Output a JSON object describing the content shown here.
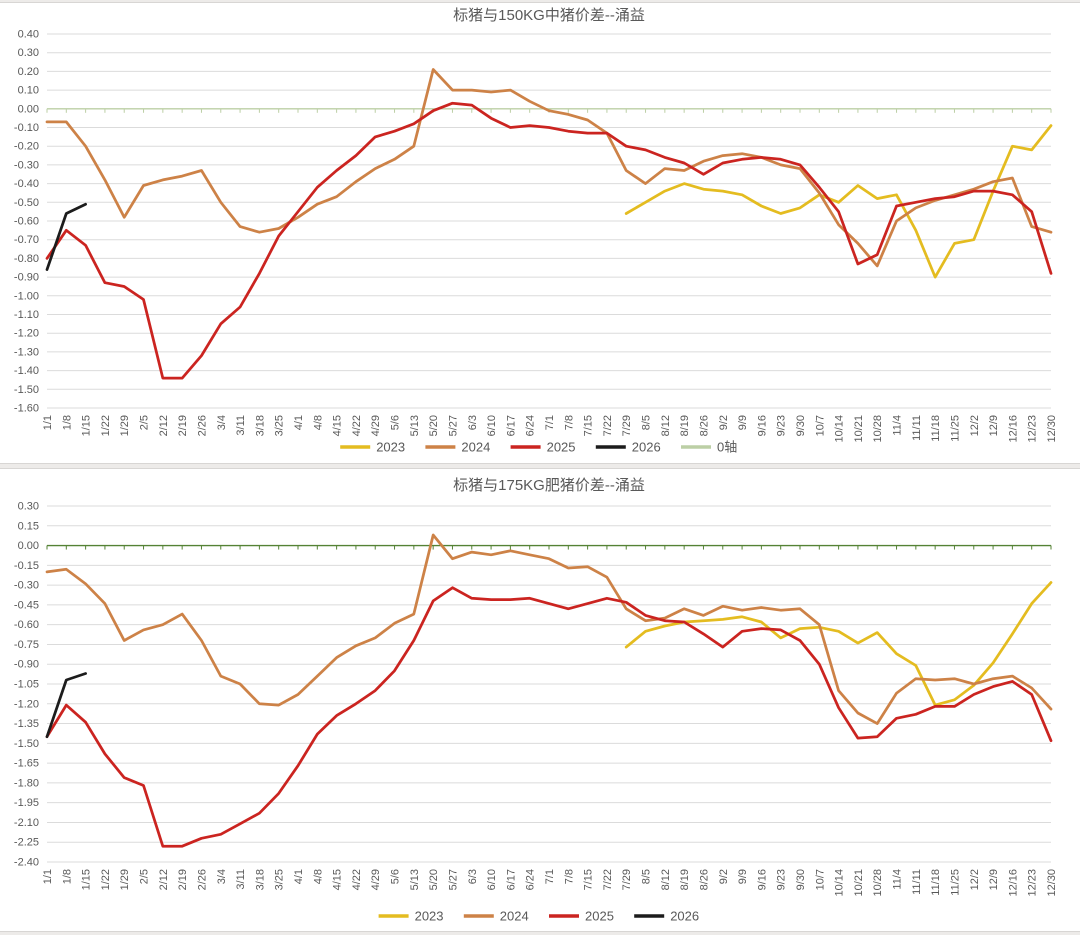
{
  "chart_data": [
    {
      "type": "line",
      "title": "标猪与150KG中猪价差--涌益",
      "xlabel": "",
      "ylabel": "",
      "ylim": [
        -1.6,
        0.4
      ],
      "ytick_step": 0.1,
      "grid": true,
      "legend_position": "bottom",
      "zero_axis": {
        "label": "0轴",
        "color": "#bccfa5",
        "in_legend": true
      },
      "categories": [
        "1/1",
        "1/8",
        "1/15",
        "1/22",
        "1/29",
        "2/5",
        "2/12",
        "2/19",
        "2/26",
        "3/4",
        "3/11",
        "3/18",
        "3/25",
        "4/1",
        "4/8",
        "4/15",
        "4/22",
        "4/29",
        "5/6",
        "5/13",
        "5/20",
        "5/27",
        "6/3",
        "6/10",
        "6/17",
        "6/24",
        "7/1",
        "7/8",
        "7/15",
        "7/22",
        "7/29",
        "8/5",
        "8/12",
        "8/19",
        "8/26",
        "9/2",
        "9/9",
        "9/16",
        "9/23",
        "9/30",
        "10/7",
        "10/14",
        "10/21",
        "10/28",
        "11/4",
        "11/11",
        "11/18",
        "11/25",
        "12/2",
        "12/9",
        "12/16",
        "12/23",
        "12/30"
      ],
      "series": [
        {
          "name": "2023",
          "color": "#e4bc20",
          "values": [
            null,
            null,
            null,
            null,
            null,
            null,
            null,
            null,
            null,
            null,
            null,
            null,
            null,
            null,
            null,
            null,
            null,
            null,
            null,
            null,
            null,
            null,
            null,
            null,
            null,
            null,
            null,
            null,
            null,
            null,
            -0.56,
            -0.5,
            -0.44,
            -0.4,
            -0.43,
            -0.44,
            -0.46,
            -0.52,
            -0.56,
            -0.53,
            -0.46,
            -0.5,
            -0.41,
            -0.48,
            -0.46,
            -0.65,
            -0.9,
            -0.72,
            -0.7,
            -0.44,
            -0.2,
            -0.22,
            -0.09
          ]
        },
        {
          "name": "2024",
          "color": "#cd8247",
          "values": [
            -0.07,
            -0.07,
            -0.2,
            -0.38,
            -0.58,
            -0.41,
            -0.38,
            -0.36,
            -0.33,
            -0.5,
            -0.63,
            -0.66,
            -0.64,
            -0.58,
            -0.51,
            -0.47,
            -0.39,
            -0.32,
            -0.27,
            -0.2,
            0.21,
            0.1,
            0.1,
            0.09,
            0.1,
            0.04,
            -0.01,
            -0.03,
            -0.06,
            -0.13,
            -0.33,
            -0.4,
            -0.32,
            -0.33,
            -0.28,
            -0.25,
            -0.24,
            -0.26,
            -0.3,
            -0.32,
            -0.45,
            -0.62,
            -0.72,
            -0.84,
            -0.6,
            -0.53,
            -0.49,
            -0.46,
            -0.43,
            -0.39,
            -0.37,
            -0.63,
            -0.66
          ]
        },
        {
          "name": "2025",
          "color": "#cb2420",
          "values": [
            -0.8,
            -0.65,
            -0.73,
            -0.93,
            -0.95,
            -1.02,
            -1.44,
            -1.44,
            -1.32,
            -1.15,
            -1.06,
            -0.88,
            -0.68,
            -0.55,
            -0.42,
            -0.33,
            -0.25,
            -0.15,
            -0.12,
            -0.08,
            -0.01,
            0.03,
            0.02,
            -0.05,
            -0.1,
            -0.09,
            -0.1,
            -0.12,
            -0.13,
            -0.13,
            -0.2,
            -0.22,
            -0.26,
            -0.29,
            -0.35,
            -0.29,
            -0.27,
            -0.26,
            -0.27,
            -0.3,
            -0.42,
            -0.55,
            -0.83,
            -0.78,
            -0.52,
            -0.5,
            -0.48,
            -0.47,
            -0.44,
            -0.44,
            -0.46,
            -0.55,
            -0.88
          ]
        },
        {
          "name": "2026",
          "color": "#1c1c1c",
          "values": [
            -0.86,
            -0.56,
            -0.51,
            null,
            null,
            null,
            null,
            null,
            null,
            null,
            null,
            null,
            null,
            null,
            null,
            null,
            null,
            null,
            null,
            null,
            null,
            null,
            null,
            null,
            null,
            null,
            null,
            null,
            null,
            null,
            null,
            null,
            null,
            null,
            null,
            null,
            null,
            null,
            null,
            null,
            null,
            null,
            null,
            null,
            null,
            null,
            null,
            null,
            null,
            null,
            null,
            null,
            null
          ]
        }
      ]
    },
    {
      "type": "line",
      "title": "标猪与175KG肥猪价差--涌益",
      "xlabel": "",
      "ylabel": "",
      "ylim": [
        -2.4,
        0.3
      ],
      "ytick_step": 0.15,
      "grid": true,
      "legend_position": "bottom",
      "zero_axis": {
        "label": "0轴",
        "color": "#548235",
        "in_legend": false
      },
      "categories": [
        "1/1",
        "1/8",
        "1/15",
        "1/22",
        "1/29",
        "2/5",
        "2/12",
        "2/19",
        "2/26",
        "3/4",
        "3/11",
        "3/18",
        "3/25",
        "4/1",
        "4/8",
        "4/15",
        "4/22",
        "4/29",
        "5/6",
        "5/13",
        "5/20",
        "5/27",
        "6/3",
        "6/10",
        "6/17",
        "6/24",
        "7/1",
        "7/8",
        "7/15",
        "7/22",
        "7/29",
        "8/5",
        "8/12",
        "8/19",
        "8/26",
        "9/2",
        "9/9",
        "9/16",
        "9/23",
        "9/30",
        "10/7",
        "10/14",
        "10/21",
        "10/28",
        "11/4",
        "11/11",
        "11/18",
        "11/25",
        "12/2",
        "12/9",
        "12/16",
        "12/23",
        "12/30"
      ],
      "series": [
        {
          "name": "2023",
          "color": "#e4bc20",
          "values": [
            null,
            null,
            null,
            null,
            null,
            null,
            null,
            null,
            null,
            null,
            null,
            null,
            null,
            null,
            null,
            null,
            null,
            null,
            null,
            null,
            null,
            null,
            null,
            null,
            null,
            null,
            null,
            null,
            null,
            null,
            -0.77,
            -0.65,
            -0.61,
            -0.58,
            -0.57,
            -0.56,
            -0.54,
            -0.58,
            -0.7,
            -0.63,
            -0.62,
            -0.65,
            -0.74,
            -0.66,
            -0.82,
            -0.91,
            -1.21,
            -1.17,
            -1.06,
            -0.89,
            -0.67,
            -0.44,
            -0.28
          ]
        },
        {
          "name": "2024",
          "color": "#cd8247",
          "values": [
            -0.2,
            -0.18,
            -0.29,
            -0.44,
            -0.72,
            -0.64,
            -0.6,
            -0.52,
            -0.72,
            -0.99,
            -1.05,
            -1.2,
            -1.21,
            -1.13,
            -0.99,
            -0.85,
            -0.76,
            -0.7,
            -0.59,
            -0.52,
            0.08,
            -0.1,
            -0.05,
            -0.07,
            -0.04,
            -0.07,
            -0.1,
            -0.17,
            -0.16,
            -0.24,
            -0.48,
            -0.57,
            -0.55,
            -0.48,
            -0.53,
            -0.46,
            -0.49,
            -0.47,
            -0.49,
            -0.48,
            -0.6,
            -1.1,
            -1.27,
            -1.35,
            -1.12,
            -1.01,
            -1.02,
            -1.01,
            -1.05,
            -1.01,
            -0.99,
            -1.08,
            -1.24
          ]
        },
        {
          "name": "2025",
          "color": "#cb2420",
          "values": [
            -1.45,
            -1.21,
            -1.34,
            -1.58,
            -1.76,
            -1.82,
            -2.28,
            -2.28,
            -2.22,
            -2.19,
            -2.11,
            -2.03,
            -1.88,
            -1.67,
            -1.43,
            -1.29,
            -1.2,
            -1.1,
            -0.95,
            -0.72,
            -0.42,
            -0.32,
            -0.4,
            -0.41,
            -0.41,
            -0.4,
            -0.44,
            -0.48,
            -0.44,
            -0.4,
            -0.43,
            -0.53,
            -0.57,
            -0.58,
            -0.67,
            -0.77,
            -0.65,
            -0.63,
            -0.64,
            -0.72,
            -0.9,
            -1.23,
            -1.46,
            -1.45,
            -1.31,
            -1.28,
            -1.22,
            -1.22,
            -1.13,
            -1.07,
            -1.03,
            -1.13,
            -1.48
          ]
        },
        {
          "name": "2026",
          "color": "#1c1c1c",
          "values": [
            -1.45,
            -1.02,
            -0.97,
            null,
            null,
            null,
            null,
            null,
            null,
            null,
            null,
            null,
            null,
            null,
            null,
            null,
            null,
            null,
            null,
            null,
            null,
            null,
            null,
            null,
            null,
            null,
            null,
            null,
            null,
            null,
            null,
            null,
            null,
            null,
            null,
            null,
            null,
            null,
            null,
            null,
            null,
            null,
            null,
            null,
            null,
            null,
            null,
            null,
            null,
            null,
            null,
            null,
            null
          ]
        }
      ]
    }
  ],
  "style": {
    "text_color": "#595959",
    "grid_color": "#dbdbdb",
    "panel_background": "#ffffff",
    "page_background": "#edebe9"
  }
}
